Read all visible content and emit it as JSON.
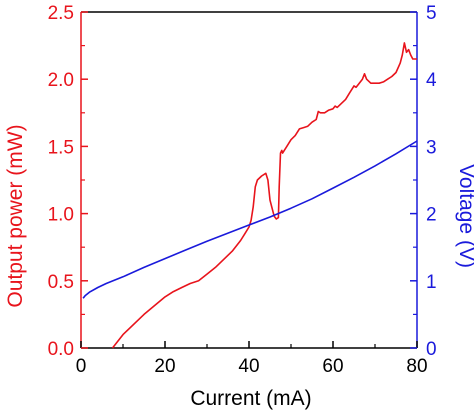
{
  "chart_data": {
    "type": "line",
    "xlabel": "Current (mA)",
    "ylabel_left": "Output power (mW)",
    "ylabel_right": "Voltage (V)",
    "xlim": [
      0,
      80
    ],
    "ylim_left": [
      0,
      2.5
    ],
    "ylim_right": [
      0,
      5
    ],
    "xticks": [
      "0",
      "20",
      "40",
      "60",
      "80"
    ],
    "yticks_left": [
      "0.0",
      "0.5",
      "1.0",
      "1.5",
      "2.0",
      "2.5"
    ],
    "yticks_right": [
      "0",
      "1",
      "2",
      "3",
      "4",
      "5"
    ],
    "grid": false,
    "colors": {
      "left_axis": "#e8141c",
      "right_axis": "#1a1adb",
      "power": "#e8141c",
      "voltage": "#1a1adb"
    },
    "series": [
      {
        "axis": "left",
        "x": [
          7.5,
          10,
          15,
          20,
          22,
          24,
          26,
          28,
          30,
          32,
          34,
          36,
          38,
          39,
          40,
          40.5,
          41,
          41.5,
          42,
          43,
          44,
          44.5,
          45,
          46,
          46.5,
          47,
          47.2,
          47.5,
          47.8,
          48,
          49,
          50,
          51,
          52,
          53,
          54,
          55,
          56,
          56.5,
          57,
          58,
          59,
          60,
          60.5,
          61,
          62,
          63,
          64,
          65,
          65.5,
          66,
          67,
          67.5,
          68,
          69,
          70,
          71,
          72,
          73,
          74,
          75,
          76,
          76.5,
          77,
          77.5,
          78,
          78.5,
          79,
          80
        ],
        "y": [
          0.0,
          0.1,
          0.25,
          0.38,
          0.42,
          0.45,
          0.48,
          0.5,
          0.55,
          0.6,
          0.66,
          0.72,
          0.8,
          0.85,
          0.9,
          0.95,
          1.05,
          1.2,
          1.25,
          1.28,
          1.3,
          1.25,
          1.1,
          0.98,
          0.96,
          0.97,
          1.2,
          1.45,
          1.47,
          1.45,
          1.5,
          1.55,
          1.58,
          1.63,
          1.64,
          1.65,
          1.68,
          1.7,
          1.76,
          1.75,
          1.75,
          1.77,
          1.78,
          1.8,
          1.79,
          1.82,
          1.85,
          1.9,
          1.95,
          1.94,
          1.96,
          2.0,
          2.04,
          2.0,
          1.97,
          1.97,
          1.97,
          1.98,
          2.0,
          2.02,
          2.05,
          2.12,
          2.18,
          2.27,
          2.2,
          2.22,
          2.18,
          2.15,
          2.15
        ]
      },
      {
        "axis": "right",
        "x": [
          0.5,
          1,
          2,
          4,
          6,
          8,
          10,
          15,
          20,
          25,
          30,
          35,
          40,
          45,
          50,
          55,
          60,
          65,
          70,
          75,
          80
        ],
        "y": [
          0.74,
          0.78,
          0.83,
          0.9,
          0.96,
          1.01,
          1.06,
          1.2,
          1.33,
          1.46,
          1.59,
          1.71,
          1.83,
          1.95,
          2.08,
          2.22,
          2.38,
          2.54,
          2.71,
          2.89,
          3.08
        ]
      }
    ]
  }
}
